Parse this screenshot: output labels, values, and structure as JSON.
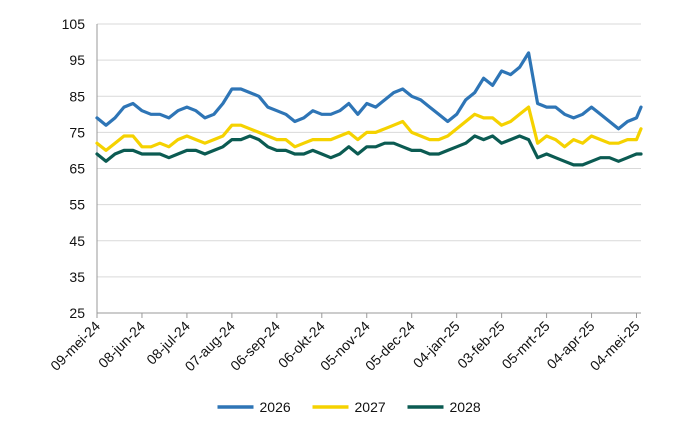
{
  "chart_data": {
    "type": "line",
    "title": "",
    "xlabel": "",
    "ylabel": "",
    "ylim": [
      25,
      105
    ],
    "y_ticks": [
      25,
      35,
      45,
      55,
      65,
      75,
      85,
      95,
      105
    ],
    "y_tick_labels": [
      "25",
      "35",
      "45",
      "55",
      "65",
      "75",
      "85",
      "95",
      "105"
    ],
    "x_ticks": [
      {
        "date": "2024-05-09",
        "label": "09-mei-24"
      },
      {
        "date": "2024-06-08",
        "label": "08-jun-24"
      },
      {
        "date": "2024-07-08",
        "label": "08-jul-24"
      },
      {
        "date": "2024-08-07",
        "label": "07-aug-24"
      },
      {
        "date": "2024-09-06",
        "label": "06-sep-24"
      },
      {
        "date": "2024-10-06",
        "label": "06-okt-24"
      },
      {
        "date": "2024-11-05",
        "label": "05-nov-24"
      },
      {
        "date": "2024-12-05",
        "label": "05-dec-24"
      },
      {
        "date": "2025-01-04",
        "label": "04-jan-25"
      },
      {
        "date": "2025-02-03",
        "label": "03-feb-25"
      },
      {
        "date": "2025-03-05",
        "label": "05-mrt-25"
      },
      {
        "date": "2025-04-04",
        "label": "04-apr-25"
      },
      {
        "date": "2025-05-04",
        "label": "04-mei-25"
      }
    ],
    "x": [
      "2024-05-09",
      "2024-05-15",
      "2024-05-21",
      "2024-05-27",
      "2024-06-02",
      "2024-06-08",
      "2024-06-14",
      "2024-06-20",
      "2024-06-26",
      "2024-07-02",
      "2024-07-08",
      "2024-07-14",
      "2024-07-20",
      "2024-07-26",
      "2024-08-01",
      "2024-08-07",
      "2024-08-13",
      "2024-08-19",
      "2024-08-25",
      "2024-08-31",
      "2024-09-06",
      "2024-09-12",
      "2024-09-18",
      "2024-09-24",
      "2024-09-30",
      "2024-10-06",
      "2024-10-12",
      "2024-10-18",
      "2024-10-24",
      "2024-10-30",
      "2024-11-05",
      "2024-11-11",
      "2024-11-17",
      "2024-11-23",
      "2024-11-29",
      "2024-12-05",
      "2024-12-11",
      "2024-12-17",
      "2024-12-23",
      "2024-12-29",
      "2025-01-04",
      "2025-01-10",
      "2025-01-16",
      "2025-01-22",
      "2025-01-28",
      "2025-02-03",
      "2025-02-09",
      "2025-02-15",
      "2025-02-21",
      "2025-02-27",
      "2025-03-05",
      "2025-03-11",
      "2025-03-17",
      "2025-03-23",
      "2025-03-29",
      "2025-04-04",
      "2025-04-10",
      "2025-04-16",
      "2025-04-22",
      "2025-04-28",
      "2025-05-04",
      "2025-05-07"
    ],
    "series": [
      {
        "name": "2026",
        "color": "#2E75B6",
        "values": [
          79,
          77,
          79,
          82,
          83,
          81,
          80,
          80,
          79,
          81,
          82,
          81,
          79,
          80,
          83,
          87,
          87,
          86,
          85,
          82,
          81,
          80,
          78,
          79,
          81,
          80,
          80,
          81,
          83,
          80,
          83,
          82,
          84,
          86,
          87,
          85,
          84,
          82,
          80,
          78,
          80,
          84,
          86,
          90,
          88,
          92,
          91,
          93,
          97,
          83,
          82,
          82,
          80,
          79,
          80,
          82,
          80,
          78,
          76,
          78,
          79,
          82
        ]
      },
      {
        "name": "2027",
        "color": "#F5D200",
        "values": [
          72,
          70,
          72,
          74,
          74,
          71,
          71,
          72,
          71,
          73,
          74,
          73,
          72,
          73,
          74,
          77,
          77,
          76,
          75,
          74,
          73,
          73,
          71,
          72,
          73,
          73,
          73,
          74,
          75,
          73,
          75,
          75,
          76,
          77,
          78,
          75,
          74,
          73,
          73,
          74,
          76,
          78,
          80,
          79,
          79,
          77,
          78,
          80,
          82,
          72,
          74,
          73,
          71,
          73,
          72,
          74,
          73,
          72,
          72,
          73,
          73,
          76
        ]
      },
      {
        "name": "2028",
        "color": "#0B5B52",
        "values": [
          69,
          67,
          69,
          70,
          70,
          69,
          69,
          69,
          68,
          69,
          70,
          70,
          69,
          70,
          71,
          73,
          73,
          74,
          73,
          71,
          70,
          70,
          69,
          69,
          70,
          69,
          68,
          69,
          71,
          69,
          71,
          71,
          72,
          72,
          71,
          70,
          70,
          69,
          69,
          70,
          71,
          72,
          74,
          73,
          74,
          72,
          73,
          74,
          73,
          68,
          69,
          68,
          67,
          66,
          66,
          67,
          68,
          68,
          67,
          68,
          69,
          69
        ]
      }
    ],
    "legend": {
      "position": "bottom",
      "entries": [
        "2026",
        "2027",
        "2028"
      ]
    },
    "grid": "horizontal"
  }
}
